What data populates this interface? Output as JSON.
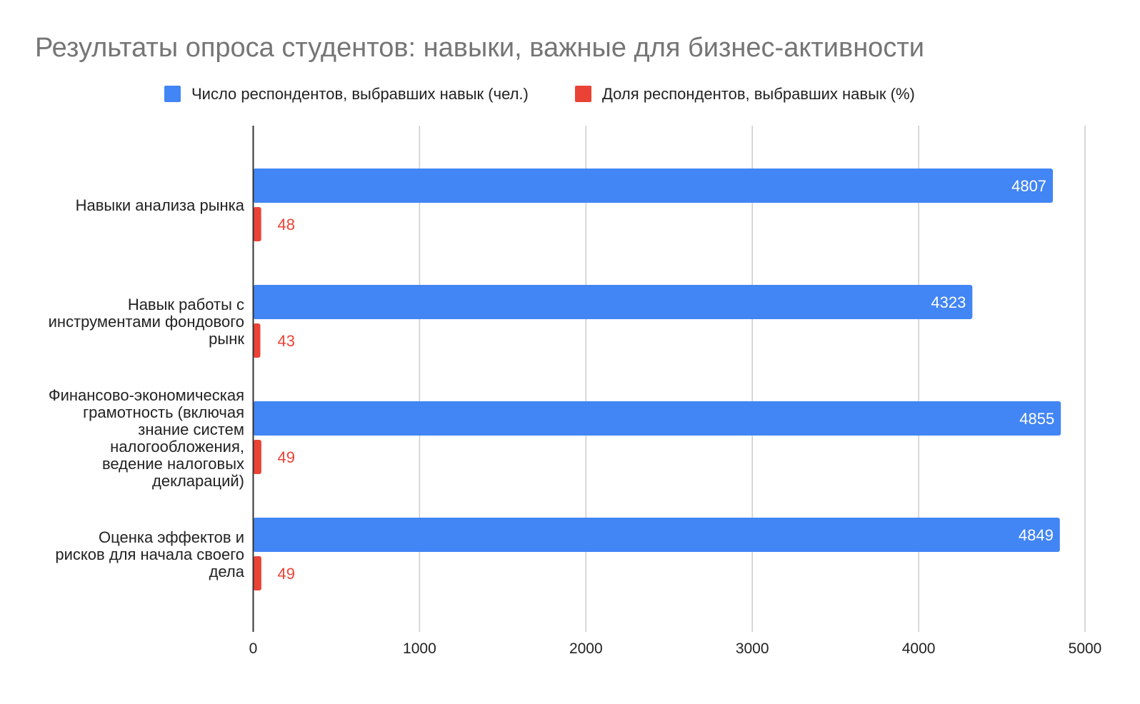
{
  "chart_data": {
    "type": "bar",
    "orientation": "horizontal",
    "title": "Результаты опроса студентов: навыки, важные для бизнес-активности",
    "categories": [
      [
        "Навыки анализа рынка"
      ],
      [
        "Навык работы с",
        "инструментами фондового",
        "рынк"
      ],
      [
        "Финансово-экономическая",
        "грамотность (включая",
        "знание систем",
        "налогообложения,",
        "ведение налоговых",
        "деклараций)"
      ],
      [
        "Оценка эффектов и",
        "рисков для начала своего",
        "дела"
      ]
    ],
    "series": [
      {
        "name": "Число респондентов, выбравших навык (чел.)",
        "color": "#4285f4",
        "values": [
          4807,
          4323,
          4855,
          4849
        ]
      },
      {
        "name": "Доля респондентов, выбравших навык (%)",
        "color": "#ea4335",
        "values": [
          48,
          43,
          49,
          49
        ]
      }
    ],
    "xlim": [
      0,
      5000
    ],
    "xticks": [
      0,
      1000,
      2000,
      3000,
      4000,
      5000
    ],
    "grid": true,
    "legend_position": "top-center",
    "data_labels": true
  }
}
